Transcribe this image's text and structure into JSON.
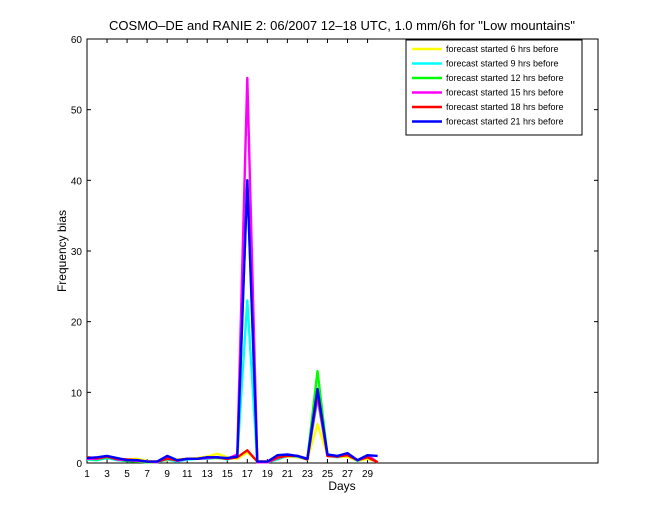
{
  "chart_data": {
    "type": "line",
    "title": "COSMO–DE and RANIE 2: 06/2007 12–18 UTC, 1.0 mm/6h for \"Low mountains\"",
    "xlabel": "Days",
    "ylabel": "Frequency bias",
    "xlim": [
      1,
      52
    ],
    "ylim": [
      0,
      60
    ],
    "x_ticks": [
      1,
      3,
      5,
      7,
      9,
      11,
      13,
      15,
      17,
      19,
      21,
      23,
      25,
      27,
      29
    ],
    "y_ticks": [
      0,
      10,
      20,
      30,
      40,
      50,
      60
    ],
    "grid": false,
    "legend_position": "top-right",
    "x": [
      1,
      2,
      3,
      4,
      5,
      6,
      7,
      8,
      9,
      10,
      11,
      12,
      13,
      14,
      15,
      16,
      17,
      18,
      19,
      20,
      21,
      22,
      23,
      24,
      25,
      26,
      27,
      28,
      29,
      30
    ],
    "series": [
      {
        "name": "forecast started 6 hrs before",
        "color": "#ffff00",
        "values": [
          0.8,
          0.6,
          0.9,
          0.5,
          0.5,
          0.6,
          0.3,
          0.2,
          0.4,
          0.5,
          0.6,
          0.7,
          0.9,
          1.3,
          0.8,
          0.6,
          1.5,
          0.3,
          0.2,
          0.7,
          0.9,
          0.8,
          0.5,
          5.5,
          1.1,
          0.8,
          0.9,
          0.3,
          0.6,
          0.2
        ]
      },
      {
        "name": "forecast started 9 hrs before",
        "color": "#00ffff",
        "values": [
          0.5,
          0.4,
          0.7,
          0.4,
          0.3,
          0.3,
          0.1,
          0.1,
          0.5,
          0.2,
          0.5,
          0.6,
          0.6,
          0.8,
          0.5,
          0.9,
          23,
          0.1,
          0.1,
          0.5,
          1.0,
          0.9,
          0.5,
          9,
          1.0,
          0.8,
          1.2,
          0.3,
          0.9,
          0.1
        ]
      },
      {
        "name": "forecast started 12 hrs before",
        "color": "#00ff00",
        "values": [
          0.6,
          0.5,
          0.8,
          0.5,
          0.3,
          0.2,
          0.1,
          0.1,
          0.7,
          0.3,
          0.6,
          0.6,
          0.7,
          0.7,
          0.6,
          1.0,
          40,
          0.1,
          0.1,
          0.6,
          1.1,
          1.0,
          0.6,
          13,
          1.0,
          0.9,
          1.3,
          0.4,
          1.0,
          0.1
        ]
      },
      {
        "name": "forecast started 15 hrs before",
        "color": "#ff00ff",
        "values": [
          0.6,
          0.6,
          0.9,
          0.5,
          0.4,
          0.3,
          0.2,
          0.1,
          0.9,
          0.3,
          0.6,
          0.6,
          0.7,
          0.8,
          0.6,
          1.2,
          54.5,
          0.1,
          0.1,
          0.7,
          1.1,
          1.0,
          0.6,
          9.5,
          1.0,
          0.9,
          1.3,
          0.4,
          1.1,
          0.1
        ]
      },
      {
        "name": "forecast started 18 hrs before",
        "color": "#ff0000",
        "values": [
          0.8,
          0.7,
          0.9,
          0.6,
          0.5,
          0.4,
          0.2,
          0.2,
          0.6,
          0.4,
          0.6,
          0.6,
          0.8,
          0.8,
          0.6,
          0.8,
          1.8,
          0.2,
          0.2,
          0.8,
          1.0,
          1.0,
          0.5,
          10,
          1.0,
          0.9,
          1.1,
          0.4,
          0.8,
          0.1
        ]
      },
      {
        "name": "forecast started 21 hrs before",
        "color": "#0000ff",
        "values": [
          0.7,
          0.8,
          1.0,
          0.7,
          0.4,
          0.4,
          0.2,
          0.2,
          1.0,
          0.4,
          0.6,
          0.6,
          0.8,
          0.8,
          0.7,
          0.9,
          40,
          0.2,
          0.2,
          1.1,
          1.2,
          1.0,
          0.6,
          10.5,
          1.2,
          1.0,
          1.4,
          0.4,
          1.1,
          1.0
        ]
      }
    ]
  }
}
